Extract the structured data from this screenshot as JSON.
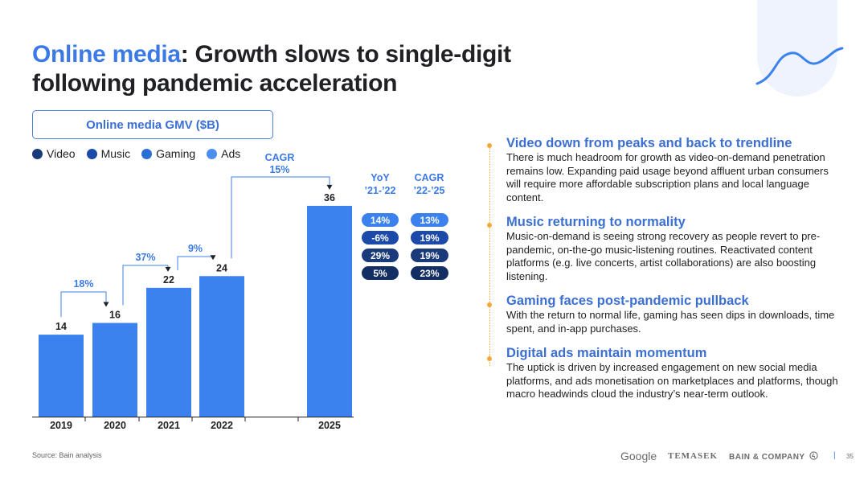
{
  "title": {
    "accent": "Online media",
    "rest": ": Growth slows to single-digit",
    "line2": "following pandemic acceleration"
  },
  "gmv_label": "Online media GMV ($B)",
  "legend": [
    {
      "label": "Video",
      "color": "#1a3b7a"
    },
    {
      "label": "Music",
      "color": "#1c4aa8"
    },
    {
      "label": "Gaming",
      "color": "#2a6fd6"
    },
    {
      "label": "Ads",
      "color": "#4a8ef0"
    }
  ],
  "chart_data": {
    "type": "bar",
    "categories": [
      "2019",
      "2020",
      "2021",
      "2022",
      "2025"
    ],
    "values": [
      14,
      16,
      22,
      24,
      36
    ],
    "growth_labels": [
      "18%",
      "37%",
      "9%"
    ],
    "cagr_label": "CAGR",
    "cagr_value": "15%",
    "bar_color": "#3b82ee",
    "ylim": [
      0,
      40
    ]
  },
  "yoy_table": {
    "yoy_header": "YoY",
    "yoy_range": "’21-’22",
    "cagr_header": "CAGR",
    "cagr_range": "’22-’25",
    "rows": [
      {
        "yoy": "14%",
        "cagr": "13%",
        "color": "#3b82ee"
      },
      {
        "yoy": "-6%",
        "cagr": "19%",
        "color": "#1c4aa8"
      },
      {
        "yoy": "29%",
        "cagr": "19%",
        "color": "#1a3b7a"
      },
      {
        "yoy": "5%",
        "cagr": "23%",
        "color": "#122e62"
      }
    ]
  },
  "points": [
    {
      "heading": "Video down from peaks and back to trendline",
      "body": "There is much headroom for growth as video-on-demand penetration remains low. Expanding paid usage beyond affluent urban consumers will require more affordable subscription plans and local language content."
    },
    {
      "heading": "Music returning to normality",
      "body": "Music-on-demand is seeing strong recovery as people revert to pre-pandemic, on-the-go music-listening routines. Reactivated content platforms (e.g. live concerts, artist collaborations) are also boosting listening."
    },
    {
      "heading": "Gaming faces post-pandemic pullback",
      "body": "With the return to normal life, gaming has seen dips in downloads, time spent, and in-app purchases."
    },
    {
      "heading": "Digital ads maintain momentum",
      "body": "The uptick is driven by increased engagement on new social media platforms, and ads monetisation on marketplaces and platforms, though macro headwinds cloud the industry’s near-term outlook."
    }
  ],
  "source": "Source: Bain analysis",
  "footer": {
    "google": "Google",
    "temasek": "TEMASEK",
    "bain": "BAIN & COMPANY",
    "bain_icon": "bain-logo-icon",
    "divider": "|",
    "page": "35"
  }
}
